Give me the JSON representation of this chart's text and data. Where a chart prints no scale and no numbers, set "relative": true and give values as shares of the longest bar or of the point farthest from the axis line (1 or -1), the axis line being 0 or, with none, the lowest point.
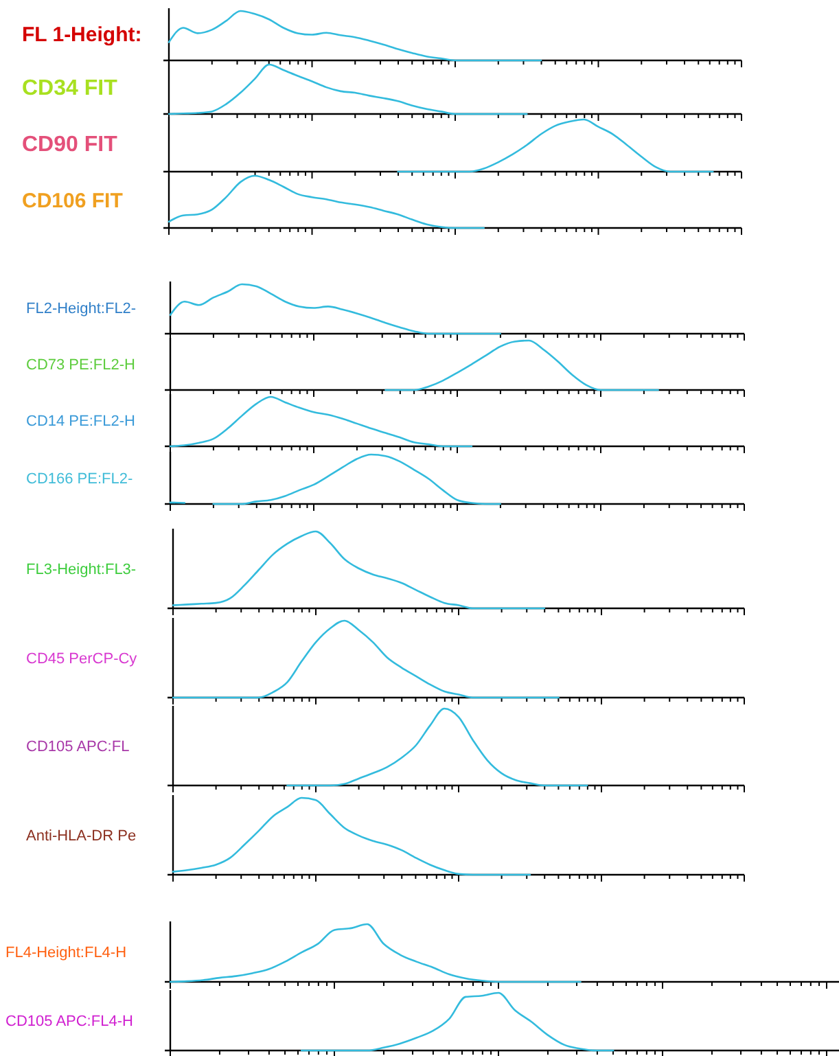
{
  "chart_data": [
    {
      "type": "line",
      "relative": true,
      "ylabel": "FL 1-Height:",
      "categories": [
        null,
        null,
        null,
        null,
        null,
        null,
        null,
        null,
        null,
        null,
        null,
        null,
        null,
        null,
        null,
        null,
        null,
        null,
        null,
        null,
        null,
        null,
        null,
        null,
        null,
        null,
        null,
        null,
        null,
        null,
        null,
        null,
        null,
        null,
        null,
        null,
        null,
        null,
        null,
        null,
        null
      ],
      "series": [
        {
          "color": "#33bbdd",
          "values": [
            0.37,
            0.66,
            0.55,
            0.62,
            0.8,
            1,
            0.94,
            0.83,
            0.66,
            0.55,
            0.52,
            0.56,
            0.51,
            0.47,
            0.4,
            0.32,
            0.23,
            0.15,
            0.08,
            0.04,
            0,
            0,
            0,
            0,
            0,
            0,
            0,
            null,
            null,
            null,
            null,
            null,
            null,
            null,
            null,
            null,
            null,
            null,
            null,
            null,
            null
          ]
        }
      ]
    },
    {
      "type": "line",
      "relative": true,
      "ylabel": "CD34 FIT",
      "categories": [
        null,
        null,
        null,
        null,
        null,
        null,
        null,
        null,
        null,
        null,
        null,
        null,
        null,
        null,
        null,
        null,
        null,
        null,
        null,
        null,
        null,
        null,
        null,
        null,
        null,
        null,
        null,
        null,
        null,
        null,
        null,
        null,
        null,
        null,
        null,
        null,
        null,
        null,
        null,
        null,
        null
      ],
      "series": [
        {
          "color": "#33bbdd",
          "values": [
            0,
            0.01,
            0.02,
            0.05,
            0.2,
            0.43,
            0.71,
            1,
            0.89,
            0.77,
            0.66,
            0.54,
            0.46,
            0.43,
            0.37,
            0.32,
            0.26,
            0.17,
            0.1,
            0.05,
            0,
            0,
            0,
            0,
            0,
            0,
            null,
            null,
            null,
            null,
            null,
            null,
            null,
            null,
            null,
            null,
            null,
            null,
            null,
            null,
            null
          ]
        }
      ]
    },
    {
      "type": "line",
      "relative": true,
      "ylabel": "CD90 FIT",
      "categories": [
        null,
        null,
        null,
        null,
        null,
        null,
        null,
        null,
        null,
        null,
        null,
        null,
        null,
        null,
        null,
        null,
        null,
        null,
        null,
        null,
        null,
        null,
        null,
        null,
        null,
        null,
        null,
        null,
        null,
        null,
        null,
        null,
        null,
        null,
        null,
        null,
        null,
        null,
        null,
        null,
        null
      ],
      "series": [
        {
          "color": "#33bbdd",
          "values": [
            null,
            null,
            null,
            null,
            null,
            null,
            null,
            null,
            null,
            null,
            null,
            null,
            null,
            null,
            null,
            null,
            0,
            0,
            0,
            0,
            0,
            0,
            0.06,
            0.18,
            0.33,
            0.51,
            0.72,
            0.88,
            0.96,
            1,
            0.86,
            0.72,
            0.51,
            0.29,
            0.09,
            0,
            0,
            0,
            0,
            null,
            null
          ]
        }
      ]
    },
    {
      "type": "line",
      "relative": true,
      "ylabel": "CD106 FIT",
      "categories": [
        null,
        null,
        null,
        null,
        null,
        null,
        null,
        null,
        null,
        null,
        null,
        null,
        null,
        null,
        null,
        null,
        null,
        null,
        null,
        null,
        null,
        null,
        null,
        null,
        null,
        null,
        null,
        null,
        null,
        null,
        null,
        null,
        null,
        null,
        null,
        null,
        null,
        null,
        null,
        null,
        null
      ],
      "series": [
        {
          "color": "#33bbdd",
          "values": [
            0.12,
            0.24,
            0.26,
            0.35,
            0.59,
            0.88,
            1,
            0.92,
            0.79,
            0.65,
            0.59,
            0.55,
            0.49,
            0.45,
            0.4,
            0.33,
            0.26,
            0.16,
            0.07,
            0.02,
            0,
            0,
            0,
            null,
            null,
            null,
            null,
            null,
            null,
            null,
            null,
            null,
            null,
            null,
            null,
            null,
            null,
            null,
            null,
            null,
            null
          ]
        }
      ]
    },
    {
      "type": "line",
      "relative": true,
      "ylabel": "FL2-Height:FL2-",
      "categories": [
        null,
        null,
        null,
        null,
        null,
        null,
        null,
        null,
        null,
        null,
        null,
        null,
        null,
        null,
        null,
        null,
        null,
        null,
        null,
        null,
        null,
        null,
        null,
        null,
        null,
        null,
        null,
        null,
        null,
        null,
        null,
        null,
        null,
        null,
        null,
        null,
        null,
        null,
        null,
        null,
        null
      ],
      "series": [
        {
          "color": "#33bbdd",
          "values": [
            0.38,
            0.65,
            0.58,
            0.73,
            0.85,
            1,
            0.96,
            0.81,
            0.65,
            0.55,
            0.52,
            0.55,
            0.49,
            0.41,
            0.32,
            0.22,
            0.13,
            0.05,
            0,
            0,
            0,
            0,
            0,
            0,
            null,
            null,
            null,
            null,
            null,
            null,
            null,
            null,
            null,
            null,
            null,
            null,
            null,
            null,
            null,
            null,
            null
          ]
        }
      ]
    },
    {
      "type": "line",
      "relative": true,
      "ylabel": "CD73 PE:FL2-H",
      "categories": [
        null,
        null,
        null,
        null,
        null,
        null,
        null,
        null,
        null,
        null,
        null,
        null,
        null,
        null,
        null,
        null,
        null,
        null,
        null,
        null,
        null,
        null,
        null,
        null,
        null,
        null,
        null,
        null,
        null,
        null,
        null,
        null,
        null,
        null,
        null,
        null,
        null,
        null,
        null,
        null,
        null
      ],
      "series": [
        {
          "color": "#33bbdd",
          "values": [
            null,
            null,
            null,
            null,
            null,
            null,
            null,
            null,
            null,
            null,
            null,
            null,
            null,
            null,
            null,
            0,
            0,
            0,
            0.07,
            0.19,
            0.35,
            0.52,
            0.7,
            0.88,
            0.98,
            1,
            0.82,
            0.58,
            0.31,
            0.1,
            0,
            0,
            0,
            0,
            0,
            null,
            null,
            null,
            null,
            null,
            null
          ]
        }
      ]
    },
    {
      "type": "line",
      "relative": true,
      "ylabel": "CD14 PE:FL2-H",
      "categories": [
        null,
        null,
        null,
        null,
        null,
        null,
        null,
        null,
        null,
        null,
        null,
        null,
        null,
        null,
        null,
        null,
        null,
        null,
        null,
        null,
        null,
        null,
        null,
        null,
        null,
        null,
        null,
        null,
        null,
        null,
        null,
        null,
        null,
        null,
        null,
        null,
        null,
        null,
        null,
        null,
        null
      ],
      "series": [
        {
          "color": "#33bbdd",
          "values": [
            0,
            0.02,
            0.07,
            0.15,
            0.36,
            0.62,
            0.86,
            1,
            0.89,
            0.78,
            0.69,
            0.64,
            0.56,
            0.46,
            0.36,
            0.27,
            0.18,
            0.08,
            0.04,
            0,
            0,
            0,
            null,
            null,
            null,
            null,
            null,
            null,
            null,
            null,
            null,
            null,
            null,
            null,
            null,
            null,
            null,
            null,
            null,
            null,
            null
          ]
        }
      ]
    },
    {
      "type": "line",
      "relative": true,
      "ylabel": "CD166 PE:FL2-",
      "categories": [
        null,
        null,
        null,
        null,
        null,
        null,
        null,
        null,
        null,
        null,
        null,
        null,
        null,
        null,
        null,
        null,
        null,
        null,
        null,
        null,
        null,
        null,
        null,
        null,
        null,
        null,
        null,
        null,
        null,
        null,
        null,
        null,
        null,
        null,
        null,
        null,
        null,
        null,
        null,
        null,
        null
      ],
      "series": [
        {
          "color": "#33bbdd",
          "values": [
            0.03,
            0.02,
            null,
            0,
            0,
            0,
            0.05,
            0.08,
            0.16,
            0.28,
            0.39,
            0.56,
            0.74,
            0.91,
            1,
            0.97,
            0.86,
            0.69,
            0.51,
            0.28,
            0.08,
            0.02,
            0,
            0,
            null,
            null,
            null,
            null,
            null,
            null,
            null,
            null,
            null,
            null,
            null,
            null,
            null,
            null,
            null,
            null,
            null
          ]
        }
      ]
    },
    {
      "type": "line",
      "relative": true,
      "ylabel": "FL3-Height:FL3-",
      "categories": [
        null,
        null,
        null,
        null,
        null,
        null,
        null,
        null,
        null,
        null,
        null,
        null,
        null,
        null,
        null,
        null,
        null,
        null,
        null,
        null,
        null,
        null,
        null,
        null,
        null,
        null,
        null,
        null,
        null,
        null,
        null,
        null,
        null,
        null,
        null,
        null,
        null,
        null,
        null,
        null,
        null
      ],
      "series": [
        {
          "color": "#33bbdd",
          "values": [
            0.04,
            0.05,
            0.06,
            0.07,
            0.13,
            0.3,
            0.5,
            0.7,
            0.84,
            0.94,
            1,
            0.85,
            0.64,
            0.52,
            0.44,
            0.39,
            0.33,
            0.24,
            0.15,
            0.07,
            0.04,
            0,
            0,
            0,
            0,
            0,
            0,
            null,
            null,
            null,
            null,
            null,
            null,
            null,
            null,
            null,
            null,
            null,
            null,
            null,
            null
          ]
        }
      ]
    },
    {
      "type": "line",
      "relative": true,
      "ylabel": "CD45 PerCP-Cy",
      "categories": [
        null,
        null,
        null,
        null,
        null,
        null,
        null,
        null,
        null,
        null,
        null,
        null,
        null,
        null,
        null,
        null,
        null,
        null,
        null,
        null,
        null,
        null,
        null,
        null,
        null,
        null,
        null,
        null,
        null,
        null,
        null,
        null,
        null,
        null,
        null,
        null,
        null,
        null,
        null,
        null,
        null
      ],
      "series": [
        {
          "color": "#33bbdd",
          "values": [
            0,
            0,
            0,
            0,
            0,
            0,
            0,
            0.07,
            0.2,
            0.47,
            0.72,
            0.9,
            1,
            0.88,
            0.72,
            0.52,
            0.39,
            0.28,
            0.17,
            0.08,
            0.04,
            0,
            0,
            0,
            0,
            0,
            0,
            0,
            null,
            null,
            null,
            null,
            null,
            null,
            null,
            null,
            null,
            null,
            null,
            null,
            null
          ]
        }
      ]
    },
    {
      "type": "line",
      "relative": true,
      "ylabel": "CD105 APC:FL",
      "categories": [
        null,
        null,
        null,
        null,
        null,
        null,
        null,
        null,
        null,
        null,
        null,
        null,
        null,
        null,
        null,
        null,
        null,
        null,
        null,
        null,
        null,
        null,
        null,
        null,
        null,
        null,
        null,
        null,
        null,
        null,
        null,
        null,
        null,
        null,
        null,
        null,
        null,
        null,
        null,
        null,
        null
      ],
      "series": [
        {
          "color": "#33bbdd",
          "values": [
            null,
            null,
            null,
            null,
            null,
            null,
            null,
            null,
            0,
            0,
            0,
            0,
            0.02,
            0.09,
            0.16,
            0.24,
            0.36,
            0.52,
            0.78,
            1,
            0.89,
            0.59,
            0.33,
            0.16,
            0.07,
            0.03,
            0,
            0,
            0,
            0,
            null,
            null,
            null,
            null,
            null,
            null,
            null,
            null,
            null,
            null,
            null
          ]
        }
      ]
    },
    {
      "type": "line",
      "relative": true,
      "ylabel": "Anti-HLA-DR Pe",
      "categories": [
        null,
        null,
        null,
        null,
        null,
        null,
        null,
        null,
        null,
        null,
        null,
        null,
        null,
        null,
        null,
        null,
        null,
        null,
        null,
        null,
        null,
        null,
        null,
        null,
        null,
        null,
        null,
        null,
        null,
        null,
        null,
        null,
        null,
        null,
        null,
        null,
        null,
        null,
        null,
        null,
        null
      ],
      "series": [
        {
          "color": "#33bbdd",
          "values": [
            0.04,
            0.06,
            0.09,
            0.13,
            0.22,
            0.39,
            0.57,
            0.76,
            0.88,
            1,
            0.97,
            0.79,
            0.61,
            0.51,
            0.44,
            0.39,
            0.32,
            0.22,
            0.13,
            0.06,
            0.01,
            0,
            0,
            0,
            0,
            0,
            null,
            null,
            null,
            null,
            null,
            null,
            null,
            null,
            null,
            null,
            null,
            null,
            null,
            null,
            null
          ]
        }
      ]
    },
    {
      "type": "line",
      "relative": true,
      "ylabel": "FL4-Height:FL4-H",
      "categories": [
        null,
        null,
        null,
        null,
        null,
        null,
        null,
        null,
        null,
        null,
        null,
        null,
        null,
        null,
        null,
        null,
        null,
        null,
        null,
        null,
        null,
        null,
        null,
        null,
        null,
        null,
        null,
        null,
        null,
        null,
        null,
        null,
        null,
        null,
        null,
        null,
        null,
        null,
        null,
        null,
        null
      ],
      "series": [
        {
          "color": "#33bbdd",
          "values": [
            0,
            0.01,
            0.03,
            0.07,
            0.1,
            0.15,
            0.22,
            0.35,
            0.51,
            0.66,
            0.9,
            0.93,
            1,
            0.66,
            0.47,
            0.35,
            0.25,
            0.13,
            0.06,
            0.02,
            0,
            0,
            0,
            0,
            0,
            0,
            null,
            null,
            null,
            null,
            null,
            null,
            null,
            null,
            null,
            null,
            null,
            null,
            null,
            null,
            null
          ]
        }
      ]
    },
    {
      "type": "line",
      "relative": true,
      "ylabel": "CD105 APC:FL4-H",
      "categories": [
        null,
        null,
        null,
        null,
        null,
        null,
        null,
        null,
        null,
        null,
        null,
        null,
        null,
        null,
        null,
        null,
        null,
        null,
        null,
        null,
        null,
        null,
        null,
        null,
        null,
        null,
        null,
        null,
        null,
        null,
        null,
        null,
        null,
        null,
        null,
        null,
        null,
        null,
        null,
        null,
        null
      ],
      "series": [
        {
          "color": "#33bbdd",
          "values": [
            null,
            null,
            null,
            null,
            null,
            null,
            null,
            null,
            0,
            0,
            0,
            0,
            0,
            0.05,
            0.12,
            0.22,
            0.34,
            0.55,
            0.93,
            0.95,
            1,
            0.7,
            0.5,
            0.27,
            0.1,
            0.03,
            0,
            0,
            null,
            null,
            null,
            null,
            null,
            null,
            null,
            null,
            null,
            null,
            null,
            null,
            null
          ]
        }
      ]
    }
  ]
}
